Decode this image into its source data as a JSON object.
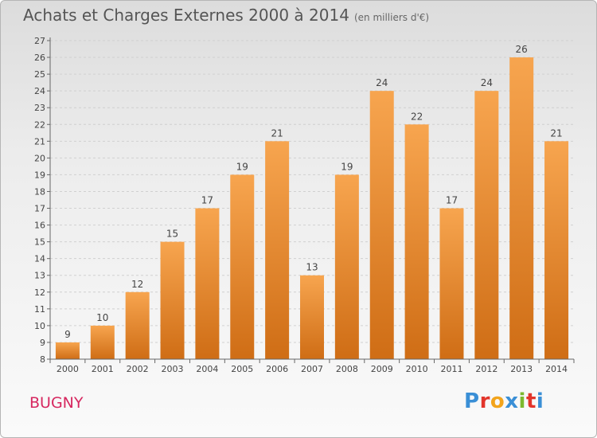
{
  "header": {
    "title": "Achats et Charges Externes 2000 à 2014",
    "unit_note": "(en milliers d'€)"
  },
  "footer": {
    "commune": "BUGNY",
    "brand_name": "Proxiti",
    "brand_letters": [
      {
        "char": "P",
        "color": "#3a8fd6"
      },
      {
        "char": "r",
        "color": "#e2352b"
      },
      {
        "char": "o",
        "color": "#f2a41c"
      },
      {
        "char": "x",
        "color": "#3a8fd6"
      },
      {
        "char": "i",
        "color": "#7cb82f"
      },
      {
        "char": "t",
        "color": "#e2352b"
      },
      {
        "char": "i",
        "color": "#3a8fd6"
      }
    ]
  },
  "colors": {
    "bar_top": "#f7a54f",
    "bar_bottom": "#cf6d15",
    "commune": "#d6275f"
  },
  "chart_data": {
    "type": "bar",
    "title": "Achats et Charges Externes 2000 à 2014",
    "subtitle": "(en milliers d'€)",
    "categories": [
      "2000",
      "2001",
      "2002",
      "2003",
      "2004",
      "2005",
      "2006",
      "2007",
      "2008",
      "2009",
      "2010",
      "2011",
      "2012",
      "2013",
      "2014"
    ],
    "values": [
      9,
      10,
      12,
      15,
      17,
      19,
      21,
      13,
      19,
      24,
      22,
      17,
      24,
      26,
      21
    ],
    "ylim": [
      8,
      27
    ],
    "yticks": [
      8,
      9,
      10,
      11,
      12,
      13,
      14,
      15,
      16,
      17,
      18,
      19,
      20,
      21,
      22,
      23,
      24,
      25,
      26,
      27
    ],
    "grid": "horizontal dashed",
    "data_labels": true
  }
}
